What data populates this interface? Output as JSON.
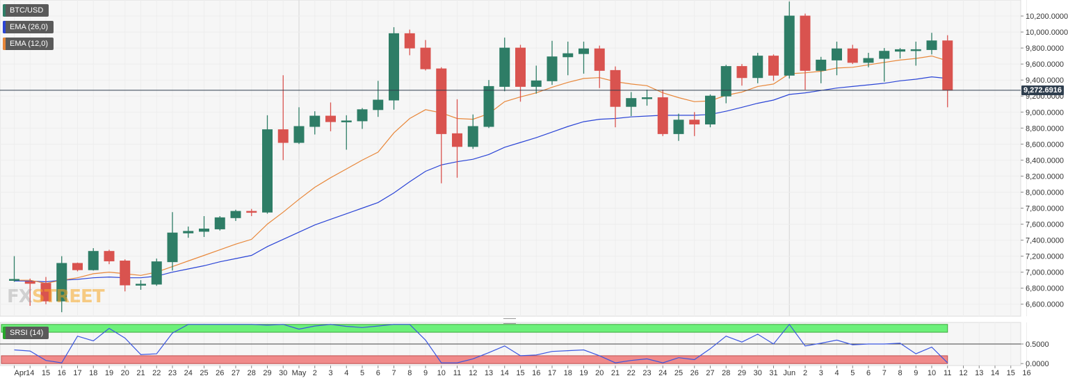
{
  "legend": {
    "symbol": "BTC/USD",
    "ema26": "EMA (26,0)",
    "ema12": "EMA (12,0)",
    "srsi": "SRSI (14)"
  },
  "watermark": {
    "part1": "FX",
    "part2": "STREET"
  },
  "colors": {
    "bull": "#2e7d66",
    "bear": "#d9534f",
    "ema26": "#2a44d6",
    "ema12": "#e8873a",
    "srsi_line": "#3a56e0",
    "srsi_upper_band": "#6cf07a",
    "srsi_lower_band": "#f08a8a",
    "price_line": "#2f3e4e"
  },
  "chart_data": [
    {
      "type": "candlestick",
      "title": "BTC/USD",
      "x_tick_labels": [
        "Apr",
        "14",
        "15",
        "16",
        "17",
        "18",
        "19",
        "20",
        "21",
        "22",
        "23",
        "24",
        "25",
        "26",
        "27",
        "28",
        "29",
        "30",
        "May",
        "2",
        "3",
        "4",
        "5",
        "6",
        "7",
        "8",
        "9",
        "10",
        "11",
        "12",
        "13",
        "14",
        "15",
        "16",
        "17",
        "18",
        "19",
        "20",
        "21",
        "22",
        "23",
        "24",
        "25",
        "26",
        "27",
        "28",
        "29",
        "30",
        "31",
        "Jun",
        "2",
        "3",
        "4",
        "5",
        "6",
        "7",
        "8",
        "9",
        "10",
        "11",
        "12",
        "13",
        "14",
        "15",
        "16"
      ],
      "y_tick_labels": [
        "6,600.0000",
        "6,800.0000",
        "7,000.0000",
        "7,200.0000",
        "7,400.0000",
        "7,600.0000",
        "7,800.0000",
        "8,000.0000",
        "8,200.0000",
        "8,400.0000",
        "8,600.0000",
        "8,800.0000",
        "9,000.0000",
        "9,200.0000",
        "9,400.0000",
        "9,600.0000",
        "9,800.0000",
        "10,000.0000",
        "10,200.0000"
      ],
      "ylim": [
        6450,
        10400
      ],
      "current_price": 9272.6916,
      "current_price_label": "9,272.6916",
      "grid": true,
      "legend": "top-left",
      "candles": [
        {
          "d": "Apr 13",
          "o": 6900,
          "h": 7200,
          "l": 6880,
          "c": 6910
        },
        {
          "d": "Apr 14",
          "o": 6880,
          "h": 6920,
          "l": 6580,
          "c": 6860
        },
        {
          "d": "Apr 15",
          "o": 6860,
          "h": 6940,
          "l": 6600,
          "c": 6640
        },
        {
          "d": "Apr 16",
          "o": 6640,
          "h": 7200,
          "l": 6500,
          "c": 7110
        },
        {
          "d": "Apr 17",
          "o": 7110,
          "h": 7120,
          "l": 7010,
          "c": 7030
        },
        {
          "d": "Apr 18",
          "o": 7030,
          "h": 7300,
          "l": 7020,
          "c": 7260
        },
        {
          "d": "Apr 19",
          "o": 7260,
          "h": 7280,
          "l": 7100,
          "c": 7140
        },
        {
          "d": "Apr 20",
          "o": 7140,
          "h": 7160,
          "l": 6760,
          "c": 6840
        },
        {
          "d": "Apr 21",
          "o": 6840,
          "h": 6900,
          "l": 6780,
          "c": 6850
        },
        {
          "d": "Apr 22",
          "o": 6850,
          "h": 7170,
          "l": 6830,
          "c": 7130
        },
        {
          "d": "Apr 23",
          "o": 7130,
          "h": 7750,
          "l": 7020,
          "c": 7490
        },
        {
          "d": "Apr 24",
          "o": 7490,
          "h": 7570,
          "l": 7430,
          "c": 7510
        },
        {
          "d": "Apr 25",
          "o": 7510,
          "h": 7700,
          "l": 7440,
          "c": 7540
        },
        {
          "d": "Apr 26",
          "o": 7540,
          "h": 7700,
          "l": 7520,
          "c": 7680
        },
        {
          "d": "Apr 27",
          "o": 7680,
          "h": 7780,
          "l": 7640,
          "c": 7760
        },
        {
          "d": "Apr 28",
          "o": 7760,
          "h": 7790,
          "l": 7700,
          "c": 7750
        },
        {
          "d": "Apr 29",
          "o": 7750,
          "h": 8960,
          "l": 7730,
          "c": 8780
        },
        {
          "d": "Apr 30",
          "o": 8780,
          "h": 9460,
          "l": 8400,
          "c": 8620
        },
        {
          "d": "May 1",
          "o": 8620,
          "h": 9060,
          "l": 8600,
          "c": 8820
        },
        {
          "d": "May 2",
          "o": 8820,
          "h": 9010,
          "l": 8720,
          "c": 8950
        },
        {
          "d": "May 3",
          "o": 8950,
          "h": 9120,
          "l": 8760,
          "c": 8880
        },
        {
          "d": "May 4",
          "o": 8880,
          "h": 8960,
          "l": 8530,
          "c": 8890
        },
        {
          "d": "May 5",
          "o": 8890,
          "h": 9050,
          "l": 8790,
          "c": 9030
        },
        {
          "d": "May 6",
          "o": 9030,
          "h": 9390,
          "l": 8940,
          "c": 9150
        },
        {
          "d": "May 7",
          "o": 9150,
          "h": 10060,
          "l": 9030,
          "c": 9980
        },
        {
          "d": "May 8",
          "o": 9980,
          "h": 10030,
          "l": 9710,
          "c": 9800
        },
        {
          "d": "May 9",
          "o": 9800,
          "h": 9900,
          "l": 9520,
          "c": 9540
        },
        {
          "d": "May 10",
          "o": 9540,
          "h": 9560,
          "l": 8110,
          "c": 8730
        },
        {
          "d": "May 11",
          "o": 8730,
          "h": 9160,
          "l": 8180,
          "c": 8570
        },
        {
          "d": "May 12",
          "o": 8570,
          "h": 8970,
          "l": 8540,
          "c": 8820
        },
        {
          "d": "May 13",
          "o": 8820,
          "h": 9400,
          "l": 8800,
          "c": 9320
        },
        {
          "d": "May 14",
          "o": 9320,
          "h": 9930,
          "l": 9260,
          "c": 9800
        },
        {
          "d": "May 15",
          "o": 9800,
          "h": 9840,
          "l": 9130,
          "c": 9320
        },
        {
          "d": "May 16",
          "o": 9320,
          "h": 9580,
          "l": 9230,
          "c": 9390
        },
        {
          "d": "May 17",
          "o": 9390,
          "h": 9890,
          "l": 9340,
          "c": 9690
        },
        {
          "d": "May 18",
          "o": 9690,
          "h": 9880,
          "l": 9460,
          "c": 9730
        },
        {
          "d": "May 19",
          "o": 9730,
          "h": 9880,
          "l": 9480,
          "c": 9790
        },
        {
          "d": "May 20",
          "o": 9790,
          "h": 9830,
          "l": 9300,
          "c": 9520
        },
        {
          "d": "May 21",
          "o": 9520,
          "h": 9570,
          "l": 8810,
          "c": 9070
        },
        {
          "d": "May 22",
          "o": 9070,
          "h": 9250,
          "l": 8950,
          "c": 9170
        },
        {
          "d": "May 23",
          "o": 9170,
          "h": 9280,
          "l": 9080,
          "c": 9180
        },
        {
          "d": "May 24",
          "o": 9180,
          "h": 9280,
          "l": 8700,
          "c": 8730
        },
        {
          "d": "May 25",
          "o": 8730,
          "h": 8980,
          "l": 8640,
          "c": 8900
        },
        {
          "d": "May 26",
          "o": 8900,
          "h": 9000,
          "l": 8700,
          "c": 8850
        },
        {
          "d": "May 27",
          "o": 8850,
          "h": 9220,
          "l": 8810,
          "c": 9200
        },
        {
          "d": "May 28",
          "o": 9200,
          "h": 9590,
          "l": 9110,
          "c": 9570
        },
        {
          "d": "May 29",
          "o": 9570,
          "h": 9600,
          "l": 9330,
          "c": 9430
        },
        {
          "d": "May 30",
          "o": 9430,
          "h": 9740,
          "l": 9360,
          "c": 9700
        },
        {
          "d": "May 31",
          "o": 9700,
          "h": 9720,
          "l": 9390,
          "c": 9460
        },
        {
          "d": "Jun 1",
          "o": 9460,
          "h": 10380,
          "l": 9420,
          "c": 10200
        },
        {
          "d": "Jun 2",
          "o": 10200,
          "h": 10230,
          "l": 9280,
          "c": 9520
        },
        {
          "d": "Jun 3",
          "o": 9520,
          "h": 9690,
          "l": 9360,
          "c": 9650
        },
        {
          "d": "Jun 4",
          "o": 9650,
          "h": 9880,
          "l": 9460,
          "c": 9790
        },
        {
          "d": "Jun 5",
          "o": 9790,
          "h": 9840,
          "l": 9600,
          "c": 9620
        },
        {
          "d": "Jun 6",
          "o": 9620,
          "h": 9740,
          "l": 9560,
          "c": 9670
        },
        {
          "d": "Jun 7",
          "o": 9670,
          "h": 9800,
          "l": 9380,
          "c": 9760
        },
        {
          "d": "Jun 8",
          "o": 9760,
          "h": 9800,
          "l": 9670,
          "c": 9780
        },
        {
          "d": "Jun 9",
          "o": 9780,
          "h": 9880,
          "l": 9580,
          "c": 9780
        },
        {
          "d": "Jun 10",
          "o": 9780,
          "h": 9990,
          "l": 9720,
          "c": 9890
        },
        {
          "d": "Jun 11",
          "o": 9890,
          "h": 9960,
          "l": 9060,
          "c": 9273
        }
      ],
      "series": [
        {
          "name": "EMA (26,0)",
          "values": [
            6890,
            6890,
            6880,
            6900,
            6910,
            6930,
            6940,
            6930,
            6930,
            6950,
            7000,
            7040,
            7080,
            7130,
            7170,
            7210,
            7320,
            7410,
            7500,
            7590,
            7660,
            7730,
            7800,
            7870,
            7990,
            8130,
            8260,
            8340,
            8380,
            8410,
            8470,
            8560,
            8620,
            8680,
            8750,
            8820,
            8880,
            8910,
            8920,
            8940,
            8950,
            8960,
            8960,
            8960,
            8970,
            9010,
            9060,
            9110,
            9150,
            9220,
            9240,
            9270,
            9300,
            9320,
            9340,
            9360,
            9390,
            9410,
            9440,
            9420
          ]
        },
        {
          "name": "EMA (12,0)",
          "values": [
            6900,
            6900,
            6860,
            6900,
            6930,
            6980,
            7000,
            6980,
            6960,
            7000,
            7070,
            7140,
            7210,
            7280,
            7350,
            7410,
            7600,
            7750,
            7910,
            8060,
            8180,
            8290,
            8400,
            8500,
            8740,
            8920,
            9030,
            8990,
            8920,
            8910,
            8980,
            9130,
            9190,
            9240,
            9310,
            9370,
            9420,
            9430,
            9380,
            9350,
            9330,
            9240,
            9180,
            9130,
            9140,
            9210,
            9250,
            9320,
            9350,
            9480,
            9490,
            9510,
            9550,
            9560,
            9590,
            9620,
            9650,
            9670,
            9700,
            9640
          ]
        }
      ]
    },
    {
      "type": "line",
      "title": "SRSI (14)",
      "y_tick_labels": [
        "0.0000",
        "0.5000"
      ],
      "ylim": [
        -0.05,
        1.05
      ],
      "bands": {
        "lower": [
          0,
          0.2
        ],
        "upper": [
          0.8,
          1.0
        ]
      },
      "reference_line": 0.5,
      "series": [
        {
          "name": "SRSI (14)",
          "values": [
            0.35,
            0.32,
            0.08,
            0.02,
            0.7,
            0.58,
            0.9,
            0.65,
            0.23,
            0.25,
            0.78,
            1.0,
            1.0,
            1.0,
            1.0,
            1.0,
            0.98,
            1.0,
            0.88,
            0.96,
            1.0,
            0.95,
            0.92,
            0.96,
            1.0,
            1.0,
            0.6,
            0.02,
            0.02,
            0.12,
            0.28,
            0.45,
            0.2,
            0.22,
            0.31,
            0.33,
            0.35,
            0.2,
            0.02,
            0.08,
            0.12,
            0.02,
            0.15,
            0.1,
            0.38,
            0.7,
            0.55,
            0.75,
            0.5,
            1.0,
            0.45,
            0.52,
            0.6,
            0.48,
            0.5,
            0.5,
            0.52,
            0.25,
            0.42,
            0.02
          ]
        }
      ]
    }
  ]
}
